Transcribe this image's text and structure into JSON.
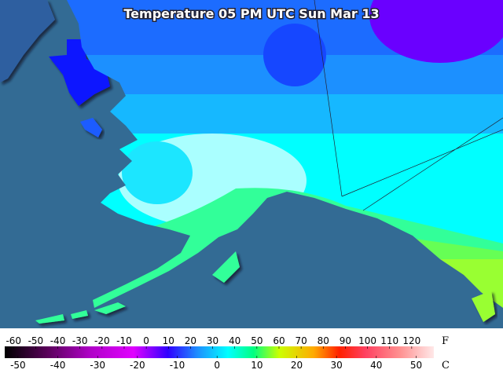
{
  "title": "Temperature 05 PM UTC Sun Mar 13",
  "legend": {
    "f_unit": "F",
    "c_unit": "C",
    "f_range": [
      -64,
      130
    ],
    "f_ticks": [
      -60,
      -50,
      -40,
      -30,
      -20,
      -10,
      0,
      10,
      20,
      30,
      40,
      50,
      60,
      70,
      80,
      90,
      100,
      110,
      120
    ],
    "c_ticks": [
      -50,
      -40,
      -30,
      -20,
      -10,
      0,
      10,
      20,
      30,
      40,
      50
    ]
  }
}
